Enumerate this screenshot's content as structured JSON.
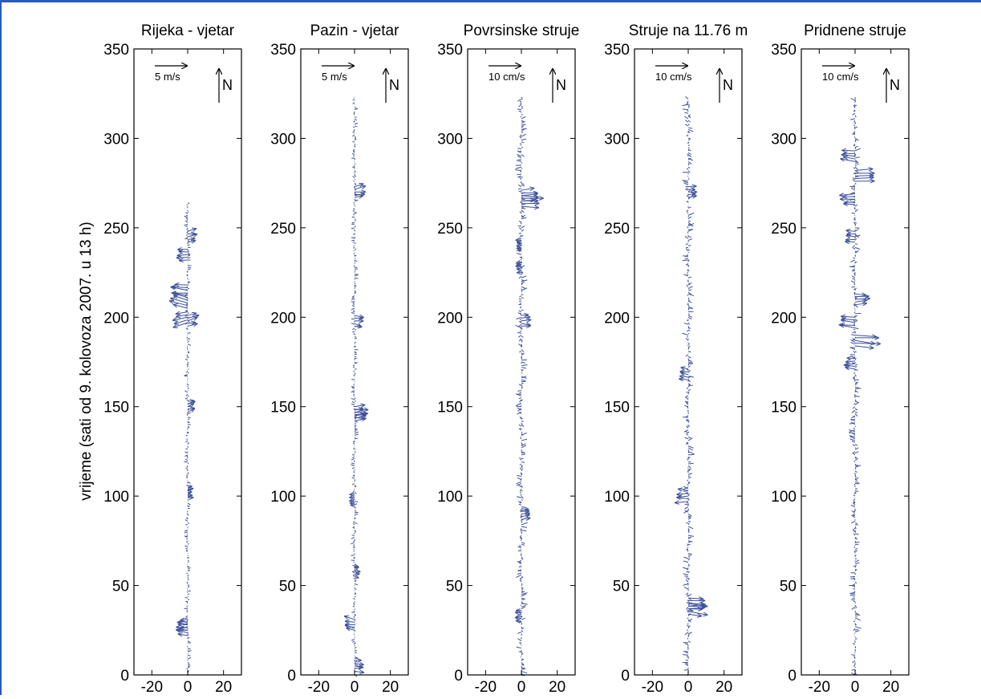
{
  "figure": {
    "ylabel": "vrijeme (sati od 9. kolovoza 2007. u 13 h)",
    "colors": {
      "vector": "#3b4f9a",
      "axis": "#000000",
      "frame": "#2b59c3"
    }
  },
  "chart_data": [
    {
      "type": "quiver",
      "title": "Rijeka - vjetar",
      "ylim": [
        0,
        350
      ],
      "yticks": [
        "0",
        "50",
        "100",
        "150",
        "200",
        "250",
        "300",
        "350"
      ],
      "xticks": [
        "-20",
        "0",
        "20"
      ],
      "xlim": [
        -30,
        30
      ],
      "scale_label": "5 m/s",
      "north_label": "N",
      "t_max": 264,
      "bursts": [
        {
          "t": 208,
          "u": -10,
          "v": 2
        },
        {
          "t": 200,
          "u": -8,
          "v": -2
        },
        {
          "t": 215,
          "u": -9,
          "v": 1
        },
        {
          "t": 235,
          "u": -6,
          "v": 0
        },
        {
          "t": 245,
          "u": 5,
          "v": 1
        },
        {
          "t": 198,
          "u": 6,
          "v": 1
        },
        {
          "t": 25,
          "u": -6,
          "v": 1
        },
        {
          "t": 28,
          "u": -5,
          "v": 0
        },
        {
          "t": 150,
          "u": 4,
          "v": 1
        },
        {
          "t": 102,
          "u": 3,
          "v": 0
        }
      ]
    },
    {
      "type": "quiver",
      "title": "Pazin - vjetar",
      "ylim": [
        0,
        350
      ],
      "yticks": [
        "0",
        "50",
        "100",
        "150",
        "200",
        "250",
        "300",
        "350"
      ],
      "xticks": [
        "-20",
        "0",
        "20"
      ],
      "xlim": [
        -30,
        30
      ],
      "scale_label": "5 m/s",
      "north_label": "N",
      "t_max": 323,
      "bursts": [
        {
          "t": 270,
          "u": 6,
          "v": 1
        },
        {
          "t": 198,
          "u": 5,
          "v": -1
        },
        {
          "t": 147,
          "u": 7,
          "v": 0
        },
        {
          "t": 145,
          "u": 6,
          "v": 1
        },
        {
          "t": 98,
          "u": -3,
          "v": 0
        },
        {
          "t": 28,
          "u": -6,
          "v": 1
        },
        {
          "t": 58,
          "u": 3,
          "v": 0
        },
        {
          "t": 5,
          "u": 5,
          "v": 0
        }
      ]
    },
    {
      "type": "quiver",
      "title": "Povrsinske struje",
      "ylim": [
        0,
        350
      ],
      "yticks": [
        "0",
        "50",
        "100",
        "150",
        "200",
        "250",
        "300",
        "350"
      ],
      "xticks": [
        "-20",
        "0",
        "20"
      ],
      "xlim": [
        -30,
        30
      ],
      "scale_label": "10 cm/s",
      "north_label": "N",
      "t_max": 323,
      "bursts": [
        {
          "t": 265,
          "u": 12,
          "v": 0
        },
        {
          "t": 268,
          "u": 9,
          "v": 1
        },
        {
          "t": 228,
          "u": -3,
          "v": 0
        },
        {
          "t": 240,
          "u": -3,
          "v": 1
        },
        {
          "t": 198,
          "u": 5,
          "v": 0
        },
        {
          "t": 90,
          "u": 5,
          "v": 0
        },
        {
          "t": 33,
          "u": -4,
          "v": 0
        }
      ]
    },
    {
      "type": "quiver",
      "title": "Struje na 11.76 m",
      "ylim": [
        0,
        350
      ],
      "yticks": [
        "0",
        "50",
        "100",
        "150",
        "200",
        "250",
        "300",
        "350"
      ],
      "xticks": [
        "-20",
        "0",
        "20"
      ],
      "xlim": [
        -30,
        30
      ],
      "scale_label": "10 cm/s",
      "north_label": "N",
      "t_max": 322,
      "bursts": [
        {
          "t": 40,
          "u": 9,
          "v": 0
        },
        {
          "t": 37,
          "u": 10,
          "v": -1
        },
        {
          "t": 100,
          "u": -7,
          "v": 0
        },
        {
          "t": 168,
          "u": -5,
          "v": 0
        },
        {
          "t": 270,
          "u": 5,
          "v": 0
        }
      ]
    },
    {
      "type": "quiver",
      "title": "Pridnene struje",
      "ylim": [
        0,
        350
      ],
      "yticks": [
        "0",
        "50",
        "100",
        "150",
        "200",
        "250",
        "300",
        "350"
      ],
      "xticks": [
        "-20",
        "0",
        "20"
      ],
      "xlim": [
        -30,
        30
      ],
      "scale_label": "10 cm/s",
      "north_label": "N",
      "t_max": 323,
      "bursts": [
        {
          "t": 187,
          "u": 13,
          "v": -1
        },
        {
          "t": 197,
          "u": -10,
          "v": 1
        },
        {
          "t": 266,
          "u": -8,
          "v": 0
        },
        {
          "t": 279,
          "u": 10,
          "v": 0
        },
        {
          "t": 290,
          "u": -8,
          "v": 1
        },
        {
          "t": 245,
          "u": -6,
          "v": 0
        },
        {
          "t": 174,
          "u": -6,
          "v": 0
        },
        {
          "t": 210,
          "u": 8,
          "v": 0
        }
      ]
    }
  ]
}
